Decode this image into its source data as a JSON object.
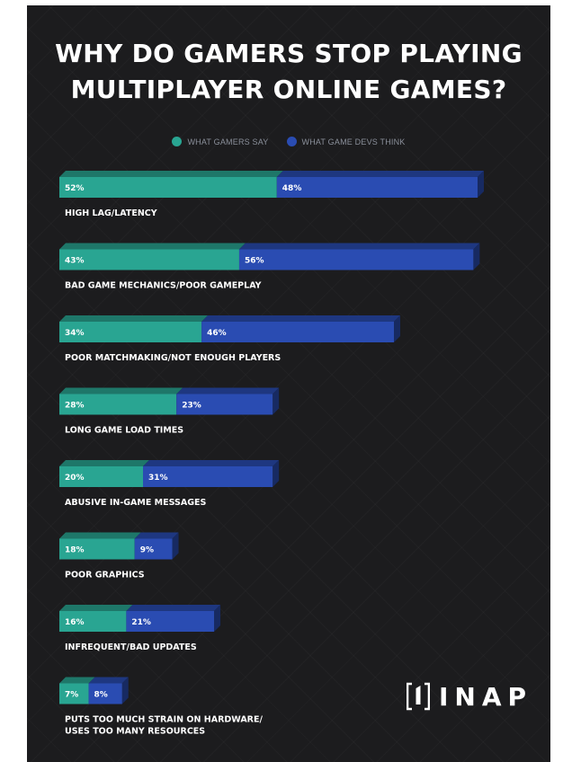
{
  "chart_data": {
    "type": "bar",
    "orientation": "horizontal",
    "stacked": true,
    "title": "WHY DO GAMERS STOP PLAYING MULTIPLAYER ONLINE GAMES?",
    "title_lines": [
      "WHY DO GAMERS STOP PLAYING",
      "MULTIPLAYER ONLINE GAMES?"
    ],
    "legend_position": "top-center",
    "categories": [
      "HIGH LAG/LATENCY",
      "BAD GAME MECHANICS/POOR GAMEPLAY",
      "POOR MATCHMAKING/NOT ENOUGH PLAYERS",
      "LONG GAME LOAD TIMES",
      "ABUSIVE IN-GAME MESSAGES",
      "POOR GRAPHICS",
      "INFREQUENT/BAD UPDATES",
      "PUTS TOO MUCH STRAIN ON HARDWARE/\nUSES TOO MANY RESOURCES"
    ],
    "series": [
      {
        "name": "WHAT GAMERS SAY",
        "color": "#29a592",
        "values": [
          52,
          43,
          34,
          28,
          20,
          18,
          16,
          7
        ],
        "labels": [
          "52%",
          "43%",
          "34%",
          "28%",
          "20%",
          "18%",
          "16%",
          "7%"
        ]
      },
      {
        "name": "WHAT GAME DEVS THINK",
        "color": "#2a4cb2",
        "values": [
          48,
          56,
          46,
          23,
          31,
          9,
          21,
          8
        ],
        "labels": [
          "48%",
          "56%",
          "46%",
          "23%",
          "31%",
          "9%",
          "21%",
          "8%"
        ]
      }
    ]
  },
  "logo": {
    "text": "INAP"
  }
}
